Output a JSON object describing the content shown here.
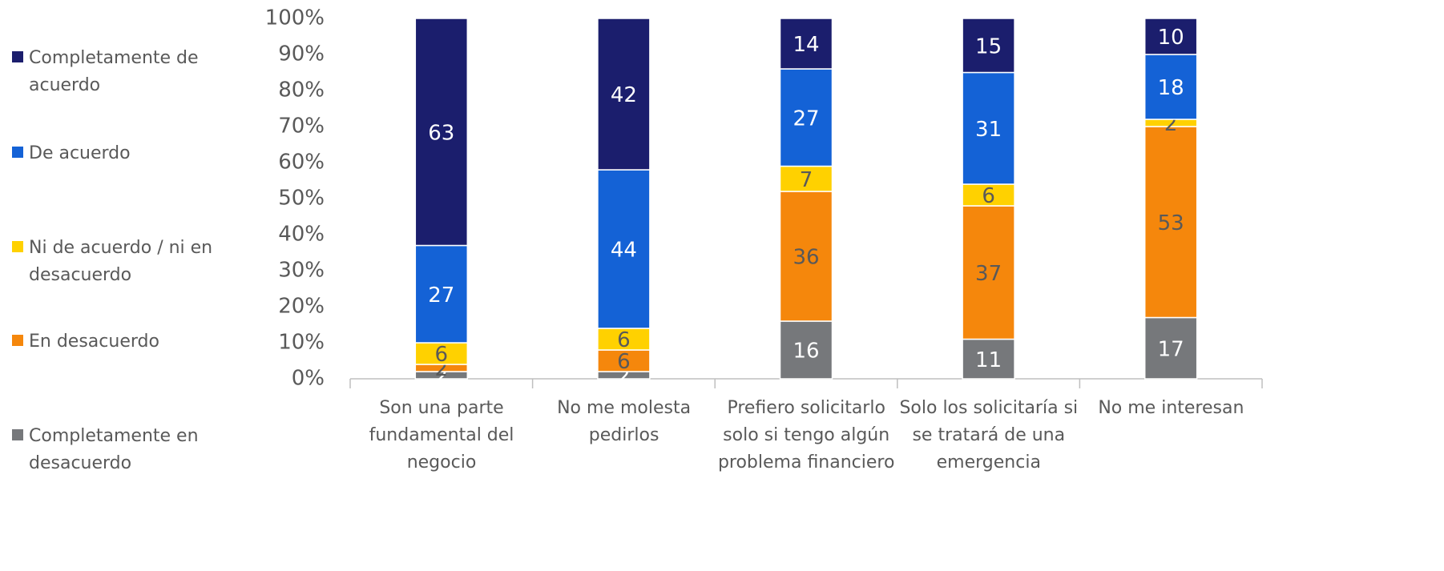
{
  "chart_data": {
    "type": "stacked_bar",
    "categories": [
      "Son una parte fundamental del negocio",
      "No me molesta pedirlos",
      "Prefiero solicitarlo solo si tengo algún problema financiero",
      "Solo los solicitaría si se tratará de una emergencia",
      "No me interesan"
    ],
    "series": [
      {
        "name": "Completamente en desacuerdo",
        "color": "#76787b",
        "label_color": "#ffffff",
        "values": [
          2,
          2,
          16,
          11,
          17
        ]
      },
      {
        "name": "En desacuerdo",
        "color": "#f5870c",
        "label_color": "#595959",
        "values": [
          2,
          6,
          36,
          37,
          53
        ]
      },
      {
        "name": "Ni de acuerdo / ni en desacuerdo",
        "color": "#ffd100",
        "label_color": "#595959",
        "values": [
          6,
          6,
          7,
          6,
          2
        ]
      },
      {
        "name": "De acuerdo",
        "color": "#1462d6",
        "label_color": "#ffffff",
        "values": [
          27,
          44,
          27,
          31,
          18
        ]
      },
      {
        "name": "Completamente de acuerdo",
        "color": "#1b1e6d",
        "label_color": "#ffffff",
        "values": [
          63,
          42,
          14,
          15,
          10
        ]
      }
    ],
    "ylim": [
      0,
      100
    ],
    "yticks": [
      {
        "value": 0,
        "label": "0%"
      },
      {
        "value": 10,
        "label": "10%"
      },
      {
        "value": 20,
        "label": "20%"
      },
      {
        "value": 30,
        "label": "30%"
      },
      {
        "value": 40,
        "label": "40%"
      },
      {
        "value": 50,
        "label": "50%"
      },
      {
        "value": 60,
        "label": "60%"
      },
      {
        "value": 70,
        "label": "70%"
      },
      {
        "value": 80,
        "label": "80%"
      },
      {
        "value": 90,
        "label": "90%"
      },
      {
        "value": 100,
        "label": "100%"
      }
    ],
    "legend": "left"
  }
}
